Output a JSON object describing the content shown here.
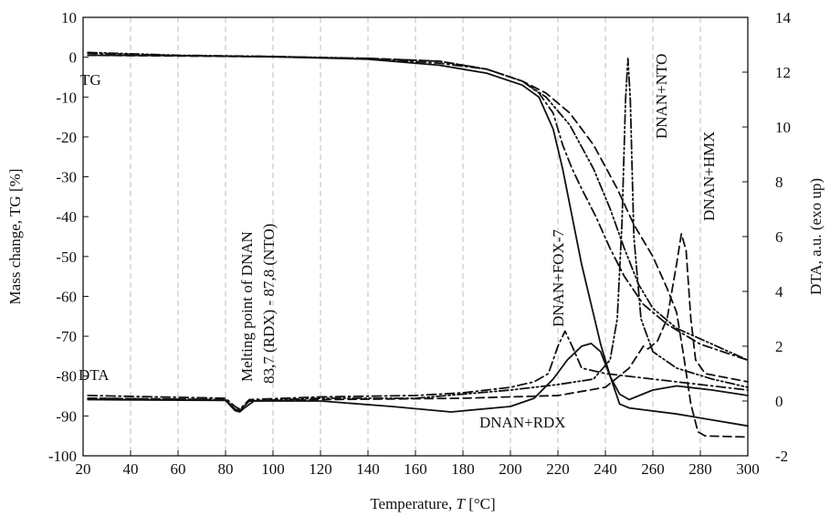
{
  "chart_data": {
    "type": "line",
    "xlabel_prefix": "Temperature, ",
    "xlabel_var": "T",
    "xlabel_suffix": " [°C]",
    "ylabel_left": "Mass change, TG [%]",
    "ylabel_right": "DTA, a.u. (exo up)",
    "xlim": [
      20,
      300
    ],
    "ylim_left": [
      -100,
      10
    ],
    "ylim_right": [
      -2,
      14
    ],
    "x_ticks": [
      20,
      40,
      60,
      80,
      100,
      120,
      140,
      160,
      180,
      200,
      220,
      240,
      260,
      280,
      300
    ],
    "y_left_ticks": [
      10,
      0,
      -10,
      -20,
      -30,
      -40,
      -50,
      -60,
      -70,
      -80,
      -90,
      -100
    ],
    "y_right_ticks": [
      14,
      12,
      10,
      8,
      6,
      4,
      2,
      0,
      -2
    ],
    "grid": "vertical dashed",
    "annotations": {
      "tg": "TG",
      "dta": "DTA",
      "melt_line1": "Melting point of DNAN",
      "melt_line2": "83,7 (RDX) - 87,8 (NTO)",
      "fox7": "DNAN+FOX-7",
      "nto": "DNAN+NTO",
      "hmx": "DNAN+HMX",
      "rdx": "DNAN+RDX"
    },
    "series": [
      {
        "label": "DNAN+RDX",
        "style": "solid",
        "tg": [
          [
            22,
            0.5
          ],
          [
            60,
            0.4
          ],
          [
            100,
            0.1
          ],
          [
            140,
            -0.5
          ],
          [
            170,
            -2
          ],
          [
            190,
            -4
          ],
          [
            205,
            -7
          ],
          [
            212,
            -10
          ],
          [
            218,
            -18
          ],
          [
            222,
            -28
          ],
          [
            226,
            -40
          ],
          [
            230,
            -52
          ],
          [
            234,
            -62
          ],
          [
            238,
            -72
          ],
          [
            242,
            -80
          ],
          [
            246,
            -87
          ],
          [
            250,
            -88
          ],
          [
            270,
            -89.5
          ],
          [
            300,
            -92.5
          ]
        ],
        "dta": [
          [
            22,
            0.05
          ],
          [
            80,
            0.02
          ],
          [
            84,
            -0.35
          ],
          [
            86,
            -0.4
          ],
          [
            88,
            -0.25
          ],
          [
            92,
            0.0
          ],
          [
            120,
            0
          ],
          [
            150,
            -0.2
          ],
          [
            175,
            -0.4
          ],
          [
            200,
            -0.2
          ],
          [
            210,
            0.1
          ],
          [
            218,
            0.8
          ],
          [
            224,
            1.5
          ],
          [
            230,
            2.0
          ],
          [
            234,
            2.1
          ],
          [
            238,
            1.8
          ],
          [
            242,
            0.9
          ],
          [
            246,
            0.25
          ],
          [
            250,
            0.05
          ],
          [
            260,
            0.4
          ],
          [
            270,
            0.55
          ],
          [
            285,
            0.4
          ],
          [
            300,
            0.2
          ]
        ]
      },
      {
        "label": "DNAN+FOX-7",
        "style": "dashdot",
        "tg": [
          [
            22,
            1
          ],
          [
            60,
            0.4
          ],
          [
            100,
            0.2
          ],
          [
            140,
            -0.4
          ],
          [
            170,
            -1.5
          ],
          [
            190,
            -3
          ],
          [
            205,
            -6
          ],
          [
            212,
            -9
          ],
          [
            218,
            -14
          ],
          [
            222,
            -22
          ],
          [
            226,
            -28
          ],
          [
            230,
            -33
          ],
          [
            236,
            -40
          ],
          [
            242,
            -48
          ],
          [
            248,
            -55
          ],
          [
            256,
            -62
          ],
          [
            266,
            -67
          ],
          [
            280,
            -72
          ],
          [
            300,
            -76
          ]
        ],
        "dta": [
          [
            22,
            0.2
          ],
          [
            80,
            0.1
          ],
          [
            84,
            -0.2
          ],
          [
            86,
            -0.3
          ],
          [
            90,
            0.05
          ],
          [
            120,
            0.15
          ],
          [
            160,
            0.2
          ],
          [
            180,
            0.3
          ],
          [
            200,
            0.5
          ],
          [
            210,
            0.7
          ],
          [
            216,
            1.0
          ],
          [
            220,
            2.0
          ],
          [
            223,
            2.55
          ],
          [
            226,
            2.0
          ],
          [
            230,
            1.2
          ],
          [
            240,
            1.0
          ],
          [
            250,
            0.9
          ],
          [
            270,
            0.7
          ],
          [
            300,
            0.4
          ]
        ]
      },
      {
        "label": "DNAN+NTO",
        "style": "dashdotdot",
        "tg": [
          [
            22,
            1.2
          ],
          [
            60,
            0.5
          ],
          [
            100,
            0.2
          ],
          [
            140,
            -0.3
          ],
          [
            170,
            -1
          ],
          [
            190,
            -3
          ],
          [
            205,
            -6
          ],
          [
            215,
            -10
          ],
          [
            225,
            -17
          ],
          [
            235,
            -28
          ],
          [
            242,
            -38
          ],
          [
            248,
            -48
          ],
          [
            254,
            -57
          ],
          [
            260,
            -63
          ],
          [
            270,
            -68
          ],
          [
            285,
            -72
          ],
          [
            300,
            -76
          ]
        ],
        "dta": [
          [
            22,
            0.1
          ],
          [
            80,
            0.05
          ],
          [
            84,
            -0.3
          ],
          [
            86,
            -0.35
          ],
          [
            90,
            0
          ],
          [
            120,
            0.1
          ],
          [
            160,
            0.1
          ],
          [
            180,
            0.25
          ],
          [
            200,
            0.4
          ],
          [
            220,
            0.6
          ],
          [
            235,
            0.8
          ],
          [
            242,
            1.5
          ],
          [
            245,
            3.0
          ],
          [
            247,
            6.5
          ],
          [
            248.5,
            11
          ],
          [
            249.5,
            12.5
          ],
          [
            250.5,
            11
          ],
          [
            252,
            6
          ],
          [
            255,
            3
          ],
          [
            260,
            1.8
          ],
          [
            270,
            1.2
          ],
          [
            285,
            0.8
          ],
          [
            300,
            0.5
          ]
        ]
      },
      {
        "label": "DNAN+HMX",
        "style": "dashed",
        "tg": [
          [
            22,
            0.5
          ],
          [
            60,
            0.3
          ],
          [
            100,
            0.1
          ],
          [
            140,
            -0.3
          ],
          [
            170,
            -1
          ],
          [
            190,
            -3
          ],
          [
            205,
            -6
          ],
          [
            215,
            -9
          ],
          [
            225,
            -14
          ],
          [
            235,
            -22
          ],
          [
            245,
            -33
          ],
          [
            252,
            -42
          ],
          [
            260,
            -50
          ],
          [
            266,
            -58
          ],
          [
            270,
            -64
          ],
          [
            273,
            -75
          ],
          [
            276,
            -87
          ],
          [
            279,
            -94
          ],
          [
            282,
            -95
          ],
          [
            300,
            -95.3
          ]
        ],
        "dta": [
          [
            22,
            0.1
          ],
          [
            80,
            0.05
          ],
          [
            84,
            -0.3
          ],
          [
            86,
            -0.35
          ],
          [
            90,
            0
          ],
          [
            120,
            0.05
          ],
          [
            180,
            0.1
          ],
          [
            220,
            0.2
          ],
          [
            240,
            0.5
          ],
          [
            250,
            1.2
          ],
          [
            256,
            2.0
          ],
          [
            258,
            1.9
          ],
          [
            262,
            2.2
          ],
          [
            266,
            3.0
          ],
          [
            270,
            5.0
          ],
          [
            272,
            6.1
          ],
          [
            274,
            5.5
          ],
          [
            276,
            3.0
          ],
          [
            278,
            1.5
          ],
          [
            282,
            1.0
          ],
          [
            300,
            0.7
          ]
        ]
      }
    ]
  }
}
